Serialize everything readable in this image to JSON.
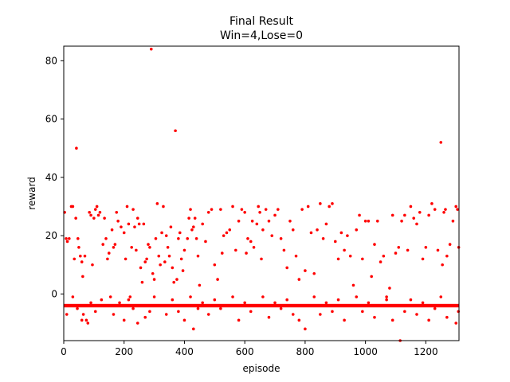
{
  "chart_data": {
    "type": "scatter",
    "title": "Final Result",
    "subtitle": "Win=4,Lose=0",
    "xlabel": "episode",
    "ylabel": "reward",
    "xlim": [
      0,
      1310
    ],
    "ylim": [
      -16,
      85
    ],
    "xticks": [
      0,
      200,
      400,
      600,
      800,
      1000,
      1200
    ],
    "yticks": [
      0,
      20,
      40,
      60,
      80
    ],
    "grid": false,
    "legend": "none",
    "marker_color": "#ff0000",
    "series": [
      {
        "points": [
          [
            3,
            28
          ],
          [
            8,
            19
          ],
          [
            12,
            18
          ],
          [
            18,
            19
          ],
          [
            25,
            30
          ],
          [
            30,
            30
          ],
          [
            35,
            12
          ],
          [
            40,
            26
          ],
          [
            42,
            50
          ],
          [
            47,
            19
          ],
          [
            50,
            16
          ],
          [
            55,
            13
          ],
          [
            60,
            11
          ],
          [
            63,
            6
          ],
          [
            70,
            13
          ],
          [
            80,
            -10
          ],
          [
            85,
            28
          ],
          [
            90,
            27
          ],
          [
            95,
            10
          ],
          [
            100,
            26
          ],
          [
            105,
            29
          ],
          [
            110,
            30
          ],
          [
            115,
            27
          ],
          [
            120,
            28
          ],
          [
            130,
            17
          ],
          [
            135,
            26
          ],
          [
            140,
            19
          ],
          [
            145,
            12
          ],
          [
            150,
            14
          ],
          [
            160,
            22
          ],
          [
            165,
            16
          ],
          [
            170,
            17
          ],
          [
            175,
            28
          ],
          [
            180,
            25
          ],
          [
            190,
            23
          ],
          [
            200,
            21
          ],
          [
            205,
            12
          ],
          [
            210,
            30
          ],
          [
            215,
            24
          ],
          [
            220,
            -1
          ],
          [
            225,
            16
          ],
          [
            230,
            29
          ],
          [
            235,
            23
          ],
          [
            240,
            15
          ],
          [
            245,
            26
          ],
          [
            250,
            24
          ],
          [
            255,
            9
          ],
          [
            260,
            4
          ],
          [
            265,
            24
          ],
          [
            270,
            11
          ],
          [
            275,
            12
          ],
          [
            280,
            17
          ],
          [
            285,
            16
          ],
          [
            290,
            84
          ],
          [
            295,
            7
          ],
          [
            300,
            5
          ],
          [
            305,
            19
          ],
          [
            310,
            31
          ],
          [
            315,
            13
          ],
          [
            320,
            10
          ],
          [
            325,
            21
          ],
          [
            330,
            30
          ],
          [
            335,
            11
          ],
          [
            340,
            20
          ],
          [
            345,
            16
          ],
          [
            350,
            13
          ],
          [
            355,
            23
          ],
          [
            360,
            9
          ],
          [
            365,
            4
          ],
          [
            370,
            56
          ],
          [
            375,
            5
          ],
          [
            380,
            19
          ],
          [
            385,
            21
          ],
          [
            390,
            12
          ],
          [
            395,
            8
          ],
          [
            400,
            15
          ],
          [
            410,
            19
          ],
          [
            415,
            26
          ],
          [
            420,
            29
          ],
          [
            425,
            22
          ],
          [
            430,
            23
          ],
          [
            435,
            26
          ],
          [
            440,
            19
          ],
          [
            445,
            13
          ],
          [
            450,
            3
          ],
          [
            460,
            24
          ],
          [
            470,
            18
          ],
          [
            480,
            28
          ],
          [
            490,
            29
          ],
          [
            500,
            10
          ],
          [
            510,
            5
          ],
          [
            520,
            29
          ],
          [
            525,
            14
          ],
          [
            530,
            20
          ],
          [
            540,
            21
          ],
          [
            550,
            22
          ],
          [
            560,
            30
          ],
          [
            570,
            15
          ],
          [
            580,
            25
          ],
          [
            590,
            29
          ],
          [
            600,
            28
          ],
          [
            605,
            14
          ],
          [
            610,
            19
          ],
          [
            620,
            18
          ],
          [
            625,
            25
          ],
          [
            630,
            16
          ],
          [
            640,
            24
          ],
          [
            645,
            30
          ],
          [
            650,
            28
          ],
          [
            655,
            12
          ],
          [
            660,
            22
          ],
          [
            670,
            29
          ],
          [
            680,
            25
          ],
          [
            690,
            20
          ],
          [
            700,
            27
          ],
          [
            710,
            29
          ],
          [
            720,
            19
          ],
          [
            730,
            15
          ],
          [
            740,
            9
          ],
          [
            750,
            25
          ],
          [
            760,
            22
          ],
          [
            770,
            13
          ],
          [
            780,
            5
          ],
          [
            790,
            29
          ],
          [
            800,
            8
          ],
          [
            810,
            30
          ],
          [
            820,
            21
          ],
          [
            830,
            7
          ],
          [
            840,
            22
          ],
          [
            850,
            31
          ],
          [
            860,
            19
          ],
          [
            870,
            24
          ],
          [
            880,
            30
          ],
          [
            890,
            31
          ],
          [
            900,
            18
          ],
          [
            910,
            12
          ],
          [
            920,
            21
          ],
          [
            930,
            15
          ],
          [
            940,
            20
          ],
          [
            950,
            13
          ],
          [
            960,
            3
          ],
          [
            970,
            22
          ],
          [
            980,
            27
          ],
          [
            990,
            12
          ],
          [
            1000,
            25
          ],
          [
            1010,
            25
          ],
          [
            1020,
            6
          ],
          [
            1030,
            17
          ],
          [
            1040,
            25
          ],
          [
            1050,
            11
          ],
          [
            1060,
            13
          ],
          [
            1070,
            -2
          ],
          [
            1080,
            2
          ],
          [
            1090,
            27
          ],
          [
            1100,
            14
          ],
          [
            1110,
            16
          ],
          [
            1120,
            25
          ],
          [
            1130,
            27
          ],
          [
            1140,
            15
          ],
          [
            1150,
            30
          ],
          [
            1160,
            26
          ],
          [
            1170,
            24
          ],
          [
            1180,
            28
          ],
          [
            1190,
            12
          ],
          [
            1200,
            16
          ],
          [
            1210,
            27
          ],
          [
            1220,
            31
          ],
          [
            1230,
            29
          ],
          [
            1240,
            15
          ],
          [
            1250,
            52
          ],
          [
            1255,
            10
          ],
          [
            1260,
            28
          ],
          [
            1265,
            29
          ],
          [
            1270,
            13
          ],
          [
            1280,
            17
          ],
          [
            1290,
            25
          ],
          [
            1300,
            30
          ],
          [
            1305,
            29
          ],
          [
            1309,
            16
          ],
          [
            10,
            -7
          ],
          [
            20,
            -4
          ],
          [
            30,
            -1
          ],
          [
            45,
            -5
          ],
          [
            60,
            -9
          ],
          [
            65,
            -7
          ],
          [
            75,
            -9
          ],
          [
            90,
            -3
          ],
          [
            105,
            -6
          ],
          [
            125,
            -2
          ],
          [
            140,
            -4
          ],
          [
            155,
            -1
          ],
          [
            165,
            -7
          ],
          [
            185,
            -3
          ],
          [
            200,
            -9
          ],
          [
            215,
            -2
          ],
          [
            230,
            -5
          ],
          [
            245,
            -10
          ],
          [
            255,
            -4
          ],
          [
            270,
            -8
          ],
          [
            285,
            -6
          ],
          [
            300,
            -1
          ],
          [
            320,
            -4
          ],
          [
            340,
            -7
          ],
          [
            360,
            -2
          ],
          [
            380,
            -6
          ],
          [
            400,
            -9
          ],
          [
            420,
            -1
          ],
          [
            430,
            -12
          ],
          [
            445,
            -5
          ],
          [
            460,
            -3
          ],
          [
            480,
            -7
          ],
          [
            500,
            -2
          ],
          [
            520,
            -5
          ],
          [
            540,
            -4
          ],
          [
            560,
            -1
          ],
          [
            580,
            -9
          ],
          [
            600,
            -3
          ],
          [
            620,
            -6
          ],
          [
            640,
            -4
          ],
          [
            660,
            -1
          ],
          [
            680,
            -8
          ],
          [
            700,
            -3
          ],
          [
            720,
            -5
          ],
          [
            740,
            -2
          ],
          [
            760,
            -7
          ],
          [
            780,
            -9
          ],
          [
            800,
            -12
          ],
          [
            815,
            -4
          ],
          [
            830,
            -1
          ],
          [
            850,
            -7
          ],
          [
            870,
            -3
          ],
          [
            890,
            -6
          ],
          [
            910,
            -2
          ],
          [
            930,
            -9
          ],
          [
            950,
            -4
          ],
          [
            970,
            -1
          ],
          [
            990,
            -6
          ],
          [
            1010,
            -3
          ],
          [
            1030,
            -8
          ],
          [
            1050,
            -4
          ],
          [
            1070,
            -1
          ],
          [
            1090,
            -9
          ],
          [
            1110,
            -4
          ],
          [
            1115,
            -16
          ],
          [
            1130,
            -6
          ],
          [
            1150,
            -2
          ],
          [
            1170,
            -7
          ],
          [
            1190,
            -3
          ],
          [
            1210,
            -9
          ],
          [
            1230,
            -5
          ],
          [
            1250,
            -1
          ],
          [
            1270,
            -8
          ],
          [
            1290,
            -4
          ],
          [
            1300,
            -10
          ],
          [
            1308,
            -6
          ]
        ],
        "baseline_value": -4
      }
    ]
  }
}
